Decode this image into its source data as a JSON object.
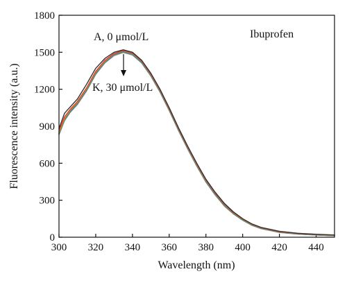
{
  "chart_data": {
    "type": "line",
    "xlabel": "Wavelength (nm)",
    "ylabel": "Fluorescence intensity (a.u.)",
    "xlim": [
      300,
      450
    ],
    "ylim": [
      0,
      1800
    ],
    "x_ticks": [
      300,
      320,
      340,
      360,
      380,
      400,
      420,
      440
    ],
    "y_ticks": [
      0,
      300,
      600,
      900,
      1200,
      1500,
      1800
    ],
    "grid": false,
    "x": [
      300,
      303,
      306,
      310,
      315,
      320,
      325,
      330,
      335,
      340,
      345,
      350,
      355,
      360,
      365,
      370,
      375,
      380,
      385,
      390,
      395,
      400,
      405,
      410,
      420,
      430,
      440,
      450
    ],
    "series": [
      {
        "values": [
          880,
          1005,
          1055,
          1120,
          1240,
          1370,
          1450,
          1500,
          1520,
          1500,
          1435,
          1330,
          1200,
          1050,
          890,
          740,
          600,
          470,
          365,
          275,
          205,
          150,
          108,
          80,
          48,
          32,
          24,
          18
        ],
        "color": "#333333"
      },
      {
        "values": [
          860,
          975,
          1035,
          1100,
          1210,
          1345,
          1435,
          1490,
          1515,
          1495,
          1430,
          1325,
          1195,
          1045,
          885,
          735,
          595,
          465,
          360,
          270,
          200,
          148,
          106,
          78,
          46,
          31,
          23,
          17
        ],
        "color": "#e23a2a"
      },
      {
        "values": [
          850,
          965,
          1030,
          1095,
          1205,
          1340,
          1430,
          1488,
          1513,
          1493,
          1428,
          1322,
          1192,
          1042,
          882,
          732,
          592,
          462,
          358,
          268,
          198,
          146,
          104,
          77,
          45,
          30,
          22,
          16
        ],
        "color": "#f0a020"
      },
      {
        "values": [
          845,
          960,
          1025,
          1090,
          1200,
          1335,
          1428,
          1486,
          1511,
          1491,
          1426,
          1320,
          1190,
          1040,
          880,
          730,
          590,
          460,
          356,
          266,
          196,
          144,
          103,
          76,
          44,
          29,
          21,
          15
        ],
        "color": "#3aa845"
      },
      {
        "values": [
          842,
          957,
          1022,
          1087,
          1197,
          1332,
          1425,
          1484,
          1509,
          1489,
          1424,
          1318,
          1188,
          1038,
          878,
          728,
          588,
          458,
          354,
          264,
          194,
          143,
          102,
          75,
          43,
          28,
          20,
          15
        ],
        "color": "#2f6fd0"
      },
      {
        "values": [
          840,
          955,
          1020,
          1085,
          1195,
          1330,
          1423,
          1482,
          1507,
          1487,
          1422,
          1316,
          1186,
          1036,
          876,
          726,
          586,
          456,
          352,
          262,
          193,
          142,
          101,
          74,
          42,
          27,
          20,
          14
        ],
        "color": "#8e44ad"
      },
      {
        "values": [
          838,
          952,
          1018,
          1083,
          1193,
          1328,
          1421,
          1480,
          1505,
          1485,
          1420,
          1314,
          1184,
          1034,
          874,
          724,
          584,
          454,
          350,
          260,
          192,
          141,
          100,
          73,
          41,
          27,
          19,
          14
        ],
        "color": "#16a0a0"
      },
      {
        "values": [
          836,
          950,
          1016,
          1081,
          1191,
          1326,
          1419,
          1478,
          1503,
          1483,
          1418,
          1312,
          1182,
          1032,
          872,
          722,
          582,
          452,
          348,
          258,
          191,
          140,
          99,
          72,
          40,
          26,
          19,
          13
        ],
        "color": "#e67e22"
      },
      {
        "values": [
          834,
          948,
          1014,
          1079,
          1189,
          1324,
          1417,
          1476,
          1501,
          1481,
          1416,
          1310,
          1180,
          1030,
          870,
          720,
          580,
          450,
          346,
          256,
          190,
          139,
          98,
          71,
          40,
          26,
          18,
          13
        ],
        "color": "#7f8c8d"
      },
      {
        "values": [
          832,
          946,
          1012,
          1077,
          1187,
          1322,
          1415,
          1474,
          1499,
          1479,
          1414,
          1308,
          1178,
          1028,
          868,
          718,
          578,
          448,
          344,
          254,
          189,
          138,
          97,
          70,
          39,
          25,
          18,
          12
        ],
        "color": "#5b9bd5"
      },
      {
        "values": [
          830,
          944,
          1010,
          1075,
          1185,
          1320,
          1413,
          1472,
          1497,
          1477,
          1412,
          1306,
          1176,
          1026,
          866,
          716,
          576,
          446,
          342,
          252,
          188,
          137,
          96,
          69,
          38,
          25,
          17,
          12
        ],
        "color": "#9bbb59"
      }
    ],
    "annotations": {
      "top_label": "A, 0 μmol/L",
      "bottom_label": "K, 30 μmol/L",
      "title_label": "Ibuprofen"
    }
  }
}
